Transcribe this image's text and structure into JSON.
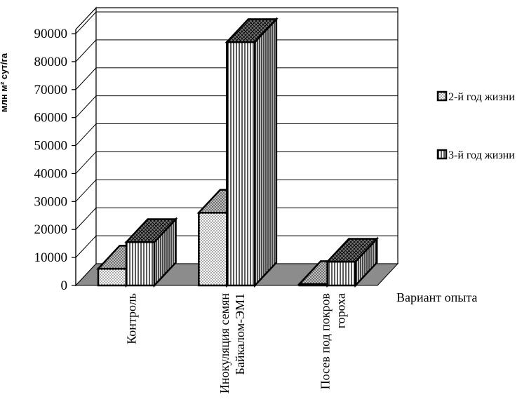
{
  "chart_data": {
    "type": "bar",
    "title": "",
    "xlabel": "Вариант опыта",
    "ylabel": "млн м² сут/га",
    "ylim": [
      0,
      90000
    ],
    "yticks": [
      0,
      10000,
      20000,
      30000,
      40000,
      50000,
      60000,
      70000,
      80000,
      90000
    ],
    "categories": [
      [
        "Контроль"
      ],
      [
        "Инокуляция семян",
        "Байкалом-ЭМ1"
      ],
      [
        "Посев под покров",
        "гороха"
      ]
    ],
    "series": [
      {
        "name": "2-й год жизни",
        "values": [
          6000,
          26000,
          500
        ],
        "pattern": "dots"
      },
      {
        "name": "3-й год жизни",
        "values": [
          15500,
          87000,
          8500
        ],
        "pattern": "vertical-lines"
      }
    ],
    "legend_position": "right",
    "grid": true,
    "three_d": true,
    "colors": {
      "back_wall": "#ffffff",
      "floor": "#8c8c8c",
      "grid": "#000000",
      "bar_outline": "#000000"
    }
  }
}
